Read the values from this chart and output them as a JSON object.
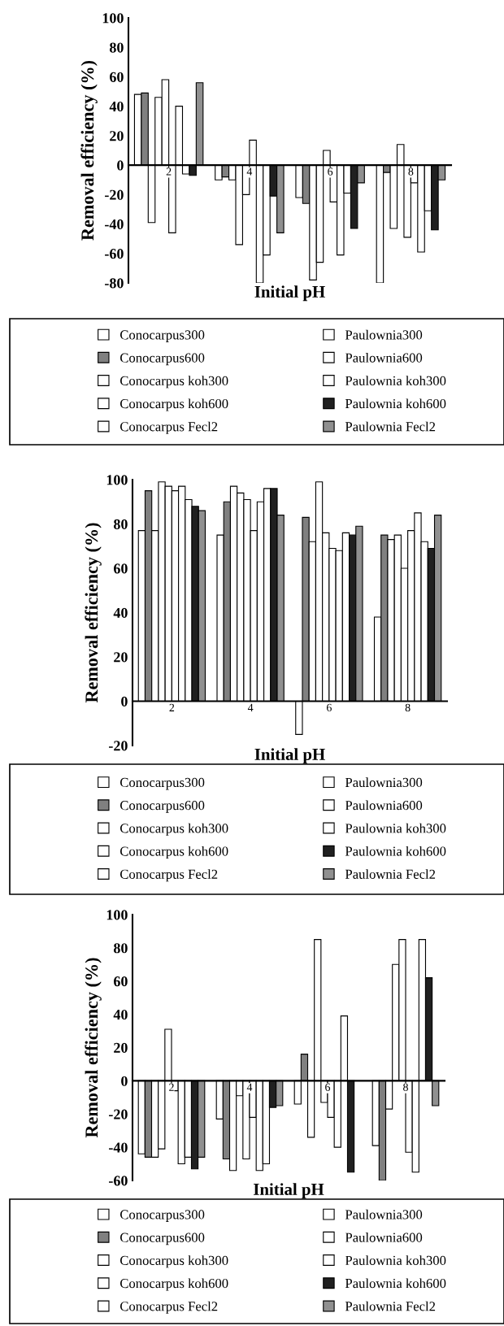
{
  "chart_data": [
    {
      "type": "bar",
      "xlabel": "Initial pH",
      "ylabel": "Removal efficiency (%)",
      "categories": [
        "2",
        "4",
        "6",
        "8"
      ],
      "ylim": [
        -80,
        100
      ],
      "yticks": [
        -80,
        -60,
        -40,
        -20,
        0,
        20,
        40,
        60,
        80,
        100
      ],
      "legend": "bottom",
      "grid": false,
      "series": [
        {
          "name": "Conocarpus300",
          "color": "#ffffff",
          "values": [
            48,
            -10,
            -22,
            -80
          ]
        },
        {
          "name": "Conocarpus600",
          "color": "#808080",
          "values": [
            49,
            -8,
            -26,
            -5
          ]
        },
        {
          "name": "Conocarpus koh300",
          "color": "#ffffff",
          "values": [
            -39,
            -10,
            -78,
            -43
          ]
        },
        {
          "name": "Conocarpus koh600",
          "color": "#ffffff",
          "values": [
            46,
            -54,
            -66,
            14
          ]
        },
        {
          "name": "Conocarpus Fecl2",
          "color": "#ffffff",
          "values": [
            58,
            -20,
            10,
            -49
          ]
        },
        {
          "name": "Paulownia300",
          "color": "#ffffff",
          "values": [
            -46,
            17,
            -25,
            -12
          ]
        },
        {
          "name": "Paulownia600",
          "color": "#ffffff",
          "values": [
            40,
            -80,
            -61,
            -59
          ]
        },
        {
          "name": "Paulownia koh300",
          "color": "#ffffff",
          "values": [
            -6,
            -61,
            -19,
            -31
          ]
        },
        {
          "name": "Paulownia koh600",
          "color": "#202020",
          "values": [
            -7,
            -21,
            -43,
            -44
          ]
        },
        {
          "name": "Paulownia Fecl2",
          "color": "#909090",
          "values": [
            56,
            -46,
            -12,
            -10
          ]
        }
      ]
    },
    {
      "type": "bar",
      "xlabel": "Initial pH",
      "ylabel": "Removal efficiency (%)",
      "categories": [
        "2",
        "4",
        "6",
        "8"
      ],
      "ylim": [
        -20,
        100
      ],
      "yticks": [
        -20,
        0,
        20,
        40,
        60,
        80,
        100
      ],
      "legend": "bottom",
      "grid": false,
      "series": [
        {
          "name": "Conocarpus300",
          "color": "#ffffff",
          "values": [
            77,
            75,
            -15,
            38
          ]
        },
        {
          "name": "Conocarpus600",
          "color": "#808080",
          "values": [
            95,
            90,
            83,
            75
          ]
        },
        {
          "name": "Conocarpus koh300",
          "color": "#ffffff",
          "values": [
            77,
            97,
            72,
            73
          ]
        },
        {
          "name": "Conocarpus koh600",
          "color": "#ffffff",
          "values": [
            99,
            94,
            99,
            75
          ]
        },
        {
          "name": "Conocarpus Fecl2",
          "color": "#ffffff",
          "values": [
            97,
            91,
            76,
            60
          ]
        },
        {
          "name": "Paulownia300",
          "color": "#ffffff",
          "values": [
            95,
            77,
            69,
            77
          ]
        },
        {
          "name": "Paulownia600",
          "color": "#ffffff",
          "values": [
            97,
            90,
            68,
            85
          ]
        },
        {
          "name": "Paulownia koh300",
          "color": "#ffffff",
          "values": [
            91,
            96,
            76,
            72
          ]
        },
        {
          "name": "Paulownia koh600",
          "color": "#202020",
          "values": [
            88,
            96,
            75,
            69
          ]
        },
        {
          "name": "Paulownia Fecl2",
          "color": "#909090",
          "values": [
            86,
            84,
            79,
            84
          ]
        }
      ]
    },
    {
      "type": "bar",
      "xlabel": "Initial pH",
      "ylabel": "Removal efficiency (%)",
      "categories": [
        "2",
        "4",
        "6",
        "8"
      ],
      "ylim": [
        -60,
        100
      ],
      "yticks": [
        -60,
        -40,
        -20,
        0,
        20,
        40,
        60,
        80,
        100
      ],
      "legend": "bottom",
      "grid": false,
      "series": [
        {
          "name": "Conocarpus300",
          "color": "#ffffff",
          "values": [
            -44,
            -23,
            -14,
            -39
          ]
        },
        {
          "name": "Conocarpus600",
          "color": "#808080",
          "values": [
            -46,
            -47,
            16,
            -60
          ]
        },
        {
          "name": "Conocarpus koh300",
          "color": "#ffffff",
          "values": [
            -46,
            -54,
            -34,
            -17
          ]
        },
        {
          "name": "Conocarpus koh600",
          "color": "#ffffff",
          "values": [
            -41,
            -9,
            85,
            70
          ]
        },
        {
          "name": "Conocarpus Fecl2",
          "color": "#ffffff",
          "values": [
            31,
            -47,
            -13,
            85
          ]
        },
        {
          "name": "Paulownia300",
          "color": "#ffffff",
          "values": [
            -6,
            -22,
            -22,
            -43
          ]
        },
        {
          "name": "Paulownia600",
          "color": "#ffffff",
          "values": [
            -50,
            -54,
            -40,
            -55
          ]
        },
        {
          "name": "Paulownia koh300",
          "color": "#ffffff",
          "values": [
            -46,
            -50,
            39,
            85
          ]
        },
        {
          "name": "Paulownia koh600",
          "color": "#202020",
          "values": [
            -53,
            -16,
            -55,
            62
          ]
        },
        {
          "name": "Paulownia Fecl2",
          "color": "#909090",
          "values": [
            -46,
            -15,
            null,
            -15
          ]
        }
      ]
    }
  ]
}
